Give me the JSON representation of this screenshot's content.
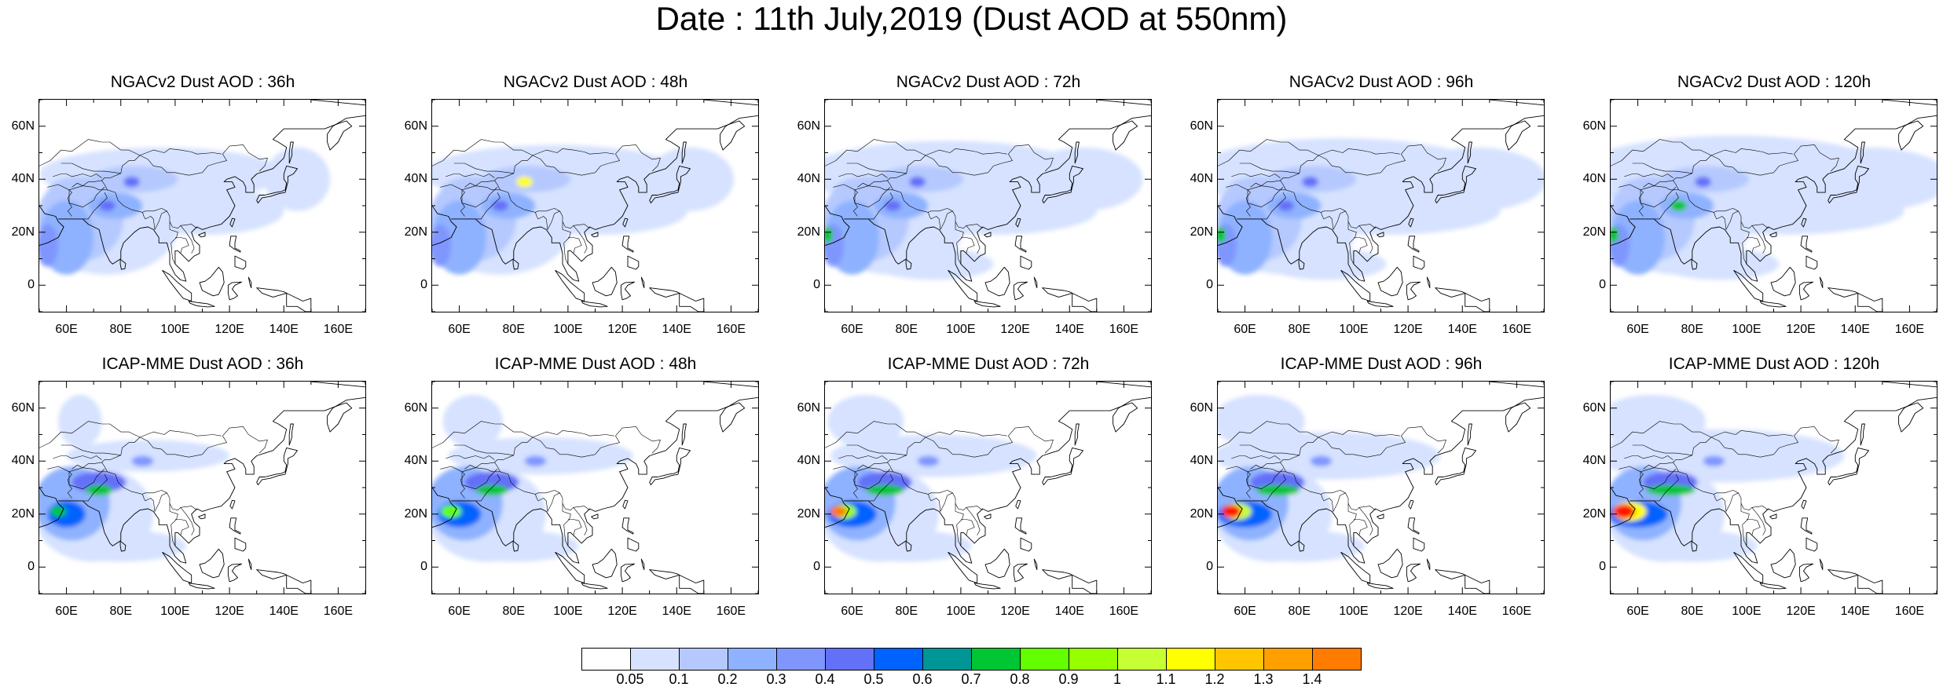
{
  "title": "Date : 11th July,2019 (Dust AOD at 550nm)",
  "panels": [
    {
      "title": "NGACv2 Dust AOD : 36h"
    },
    {
      "title": "NGACv2 Dust AOD : 48h"
    },
    {
      "title": "NGACv2 Dust AOD : 72h"
    },
    {
      "title": "NGACv2 Dust AOD : 96h"
    },
    {
      "title": "NGACv2 Dust AOD : 120h"
    },
    {
      "title": "ICAP-MME Dust AOD : 36h"
    },
    {
      "title": "ICAP-MME Dust AOD : 48h"
    },
    {
      "title": "ICAP-MME Dust AOD : 72h"
    },
    {
      "title": "ICAP-MME Dust AOD : 96h"
    },
    {
      "title": "ICAP-MME Dust AOD : 120h"
    }
  ],
  "lat_ticks": [
    "60N",
    "40N",
    "20N",
    "0"
  ],
  "lon_ticks": [
    "60E",
    "80E",
    "100E",
    "120E",
    "140E",
    "160E"
  ],
  "map_extent": {
    "lon": [
      50,
      170
    ],
    "lat": [
      -10,
      70
    ]
  },
  "colorbar": {
    "labels": [
      "0.05",
      "0.1",
      "0.2",
      "0.3",
      "0.4",
      "0.5",
      "0.6",
      "0.7",
      "0.8",
      "0.9",
      "1",
      "1.1",
      "1.2",
      "1.3",
      "1.4"
    ],
    "colors": [
      "#ffffff",
      "#d6e2ff",
      "#b5c9ff",
      "#8eb2ff",
      "#7f96ff",
      "#6370f8",
      "#0063ff",
      "#009696",
      "#00c633",
      "#63ff00",
      "#96ff00",
      "#c6ff33",
      "#ffff00",
      "#ffc600",
      "#ffa000",
      "#ff7c00",
      "#ff1900"
    ]
  }
}
